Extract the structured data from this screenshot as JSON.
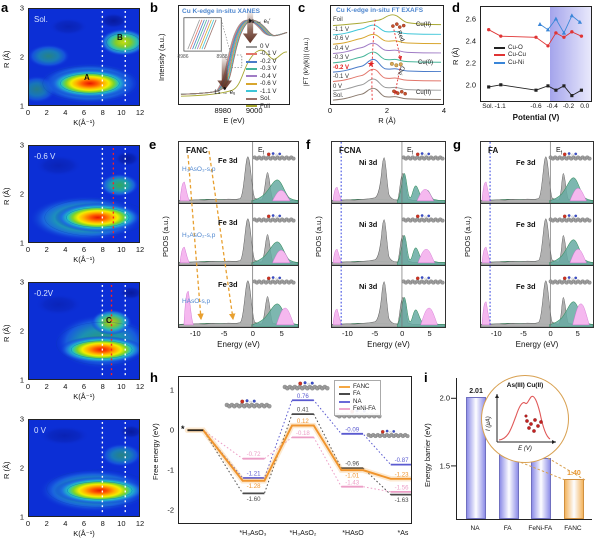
{
  "panels": {
    "a": {
      "label": "a",
      "tags": [
        "Sol.",
        "-0.6 V",
        "-0.2V",
        "0 V"
      ],
      "mark_A": "A",
      "mark_B": "B",
      "mark_C": "C",
      "ylabel": "R (Å)",
      "xlabel": "K(Å⁻¹)",
      "yticks": [
        "3",
        "2",
        "1"
      ],
      "xticks": [
        "0",
        "2",
        "4",
        "6",
        "8",
        "10",
        "12"
      ]
    },
    "b": {
      "label": "b",
      "title": "Cu K-edge in-situ XANES",
      "ylabel": "Intensity (a.u.)",
      "xlabel": "E (eV)",
      "xticks": [
        "8980",
        "9000"
      ],
      "inset_ticks": [
        "8986",
        "8988"
      ],
      "ann_top": "1s → eᵤ′",
      "ann_bottom": "1s → eᵤ",
      "legend": [
        {
          "label": "0 V",
          "color": "#9a9a9a"
        },
        {
          "label": "-0.1 V",
          "color": "#e2766b"
        },
        {
          "label": "-0.2 V",
          "color": "#4a7bc9"
        },
        {
          "label": "-0.3 V",
          "color": "#46b59a"
        },
        {
          "label": "-0.4 V",
          "color": "#a07cc5"
        },
        {
          "label": "-0.6 V",
          "color": "#d8a62e"
        },
        {
          "label": "-1.1 V",
          "color": "#3fc6d8"
        },
        {
          "label": "Sol.",
          "color": "#9c7069"
        },
        {
          "label": "Foil",
          "color": "#a8a832"
        }
      ]
    },
    "c": {
      "label": "c",
      "title": "Cu K-edge in-situ FT EXAFS",
      "ylabel": "|FT (k³χ(k))| (a.u.)",
      "xlabel": "R (Å)",
      "xticks": [
        "0",
        "2",
        "4"
      ],
      "star": "★",
      "curves": [
        {
          "label": "Foil",
          "color": "#a8a832",
          "label_color": "#333333"
        },
        {
          "label": "-1.1 V",
          "color": "#3fc6d8",
          "label_color": "#333333"
        },
        {
          "label": "-0.6 V",
          "color": "#d8a62e",
          "label_color": "#333333"
        },
        {
          "label": "-0.4 V",
          "color": "#a07cc5",
          "label_color": "#333333"
        },
        {
          "label": "-0.3 V",
          "color": "#46b59a",
          "label_color": "#333333"
        },
        {
          "label": "-0.2 V",
          "color": "#4a7bc9",
          "label_color": "#e02020"
        },
        {
          "label": "-0.1 V",
          "color": "#e2766b",
          "label_color": "#333333"
        },
        {
          "label": "0 V",
          "color": "#9a9a9a",
          "label_color": "#333333"
        },
        {
          "label": "Sol.",
          "color": "#8a7a6e",
          "label_color": "#333333"
        }
      ],
      "ann": {
        "cu2_top": "Cu(II)",
        "cu0": "Cu(0)",
        "cu2_bottom": "Cu(II)",
        "red": "Red.",
        "oxi": "Oxi."
      }
    },
    "d": {
      "label": "d",
      "ylabel": "R (Å)",
      "xlabel": "Potential (V)",
      "yticks": [
        "2.6",
        "2.4",
        "2.2",
        "2.0"
      ],
      "xticks": [
        "Sol.",
        "-1.1",
        "-0.6",
        "-0.4",
        "-0.2",
        "0.0"
      ],
      "legend": [
        {
          "label": "Cu-O",
          "color": "#222222"
        },
        {
          "label": "Cu-Cu",
          "color": "#e03434"
        },
        {
          "label": "Cu-Ni",
          "color": "#3a86d8"
        }
      ]
    },
    "e": {
      "label": "e",
      "title": "FANC",
      "orbital": "Fe 3d",
      "ef": "E",
      "ef_sub": "f",
      "species": [
        "H₃AsO₃-s,p",
        "H₃AsO₂-s,p",
        "HAsO-s,p"
      ],
      "ylabel": "PDOS (a.u.)",
      "xlabel": "Energy (eV)",
      "xticks": [
        "-10",
        "-5",
        "0",
        "5"
      ]
    },
    "f": {
      "label": "f",
      "title": "FCNA",
      "orbital": "Ni 3d",
      "ef": "E",
      "ef_sub": "f",
      "ylabel": "PDOS (a.u.)",
      "xlabel": "Energy (eV)",
      "xticks": [
        "-10",
        "-5",
        "0",
        "5"
      ]
    },
    "g": {
      "label": "g",
      "title": "FA",
      "orbital": "Fe 3d",
      "ef": "E",
      "ef_sub": "f",
      "ylabel": "PDOS (a.u.)",
      "xlabel": "Energy (eV)",
      "xticks": [
        "-10",
        "-5",
        "0",
        "5"
      ]
    },
    "h": {
      "label": "h",
      "ylabel": "Free energy (eV)",
      "yticks": [
        "1",
        "0",
        "-1",
        "-2"
      ],
      "star": "*",
      "states": [
        "*H₃AsO₃",
        "*H₃AsO₂",
        "*HAsO",
        "*As"
      ],
      "legend": [
        {
          "label": "FANC",
          "color": "#f5a742"
        },
        {
          "label": "FA",
          "color": "#4a4a4a"
        },
        {
          "label": "NA",
          "color": "#6a6ad8"
        },
        {
          "label": "FeNi-FA",
          "color": "#f0aacd"
        }
      ]
    },
    "i": {
      "label": "i",
      "ylabel": "Energy barrier (eV)",
      "yticks": [
        "2.0",
        "1.5"
      ],
      "inset": {
        "title": "As(III) Cu(II)",
        "ylabel": "I (µA)",
        "xlabel": "E (V)"
      }
    }
  },
  "chart_data": [
    {
      "panel": "a",
      "type": "heatmap",
      "xlabel": "K(Å⁻¹)",
      "ylabel": "R (Å)",
      "xlim": [
        0,
        12
      ],
      "ylim": [
        1,
        3
      ],
      "subplots": [
        {
          "condition": "Sol.",
          "features": [
            "A: intense max at K≈7, R≈1.45",
            "B: secondary max at K≈10.5, R≈2.3"
          ]
        },
        {
          "condition": "-0.6 V",
          "features": [
            "max at K≈8, R≈1.5"
          ]
        },
        {
          "condition": "-0.2V",
          "features": [
            "C: lobe at K≈9, R≈2.2",
            "max at K≈8.5, R≈1.6"
          ]
        },
        {
          "condition": "0 V",
          "features": [
            "max at K≈8.5, R≈1.55"
          ]
        }
      ],
      "guides": {
        "white_dashed_K": [
          8,
          10.5
        ],
        "red_dashed_K": 9
      }
    },
    {
      "panel": "b",
      "type": "line",
      "title": "Cu K-edge in-situ XANES",
      "xlabel": "E (eV)",
      "xticks": [
        8980,
        9000
      ],
      "series": [
        "0 V",
        "-0.1 V",
        "-0.2 V",
        "-0.3 V",
        "-0.4 V",
        "-0.6 V",
        "-1.1 V",
        "Sol.",
        "Foil"
      ],
      "annotations": [
        "1s → eᵤ pre-edge near 8981 eV",
        "1s → eᵤ′ white line near 8996 eV"
      ],
      "inset_window_eV": [
        8986,
        8988
      ]
    },
    {
      "panel": "c",
      "type": "line",
      "title": "Cu K-edge in-situ FT EXAFS",
      "xlabel": "R (Å)",
      "xlim": [
        0,
        4
      ],
      "curves_top_to_bottom": [
        "Foil",
        "-1.1 V",
        "-0.6 V",
        "-0.4 V",
        "-0.3 V",
        "-0.2 V",
        "-0.1 V",
        "0 V",
        "Sol."
      ],
      "main_peak_R": 1.5,
      "annotations": [
        "Cu(II) cluster near Foil/-1.1 V at R≈2.4",
        "Cu(0) cluster near -0.3 V at R≈2.5",
        "Cu(II) cluster near 0 V/Sol. at R≈2.5",
        "Red. arrow",
        "Oxi. arrow",
        "red star on -0.2 V peak"
      ]
    },
    {
      "panel": "d",
      "type": "line",
      "xlabel": "Potential (V)",
      "ylabel": "R (Å)",
      "ylim": [
        1.85,
        2.72
      ],
      "x": [
        "Sol.",
        "-1.1",
        "-0.6",
        "-0.45",
        "-0.35",
        "-0.25",
        "-0.15",
        "-0.05"
      ],
      "series": [
        {
          "name": "Cu-O",
          "color": "#222222",
          "marker": "square",
          "values": [
            1.98,
            2.0,
            1.95,
            1.99,
            1.95,
            1.99,
            1.9,
            1.95
          ]
        },
        {
          "name": "Cu-Cu",
          "color": "#e03434",
          "marker": "circle",
          "values": [
            2.51,
            2.45,
            2.44,
            2.36,
            2.48,
            2.44,
            2.49,
            2.45
          ]
        },
        {
          "name": "Cu-Ni",
          "color": "#3a86d8",
          "marker": "triangle",
          "x": [
            "-0.55",
            "-0.45",
            "-0.35",
            "-0.25",
            "-0.15",
            "-0.05"
          ],
          "values": [
            2.56,
            2.51,
            2.61,
            2.48,
            2.64,
            2.58
          ]
        }
      ],
      "highlight_band_V": [
        -0.35,
        0.0
      ],
      "values_estimated": true
    },
    {
      "panel": "e-g",
      "type": "area",
      "xlabel": "Energy (eV)",
      "xlim": [
        -13,
        8
      ],
      "description": "PDOS of FANC (Fe 3d), FCNA (Ni 3d) and FA (Fe 3d) with adsorbate H₃AsO₃/H₃AsO₂/HAsO s,p states; Fermi level at 0 eV; deep adsorbate states near -12 eV"
    },
    {
      "panel": "h",
      "type": "line",
      "ylabel": "Free energy (eV)",
      "ylim": [
        -2.35,
        1.35
      ],
      "start": 0,
      "states": [
        "*H₃AsO₃",
        "*H₃AsO₂",
        "*HAsO",
        "*As"
      ],
      "series": [
        {
          "name": "FANC",
          "color": "#f0952e",
          "values": [
            -1.28,
            0.12,
            -1.01,
            -1.23
          ]
        },
        {
          "name": "FA",
          "color": "#4a4a4a",
          "values": [
            -1.6,
            0.41,
            -0.96,
            -1.63
          ]
        },
        {
          "name": "NA",
          "color": "#5a5ad0",
          "values": [
            -1.21,
            0.76,
            -0.09,
            -0.87
          ]
        },
        {
          "name": "FeNi-FA",
          "color": "#ec9ec6",
          "values": [
            -0.72,
            -0.18,
            -1.43,
            -1.56
          ]
        }
      ]
    },
    {
      "panel": "i",
      "type": "bar",
      "ylabel": "Energy barrier (eV)",
      "ylim": [
        1.1,
        2.15
      ],
      "categories": [
        "NA",
        "FA",
        "FeNi-FA",
        "FANC"
      ],
      "values": [
        2.01,
        1.97,
        1.56,
        1.4
      ],
      "bar_colors": [
        "#8f8fe8",
        "#8f8fe8",
        "#8f8fe8",
        "#f3b560"
      ],
      "value_colors": [
        "#222222",
        "#222222",
        "#222222",
        "#e8962e"
      ]
    }
  ]
}
